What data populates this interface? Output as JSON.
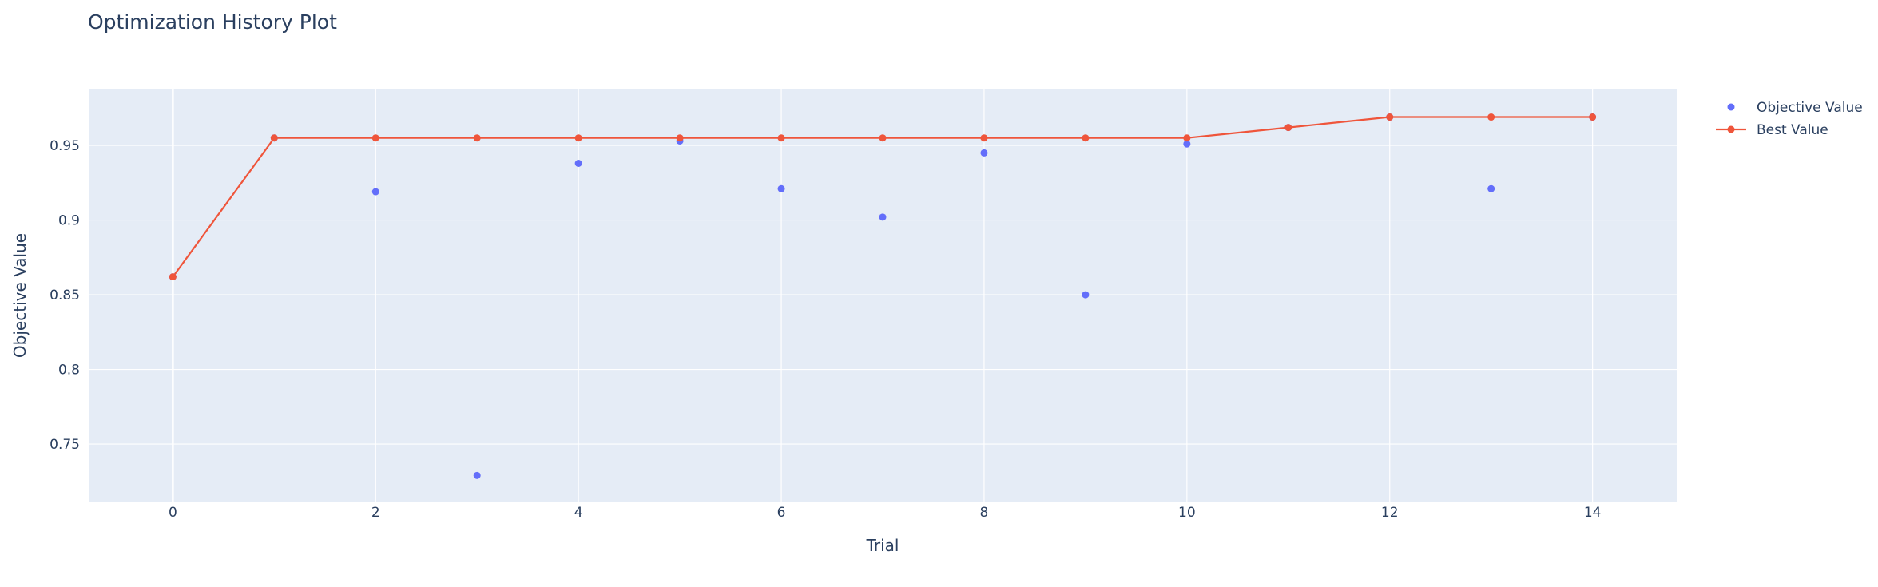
{
  "chart_data": {
    "type": "scatter",
    "title": "Optimization History Plot",
    "xlabel": "Trial",
    "ylabel": "Objective Value",
    "xlim": [
      -0.83,
      14.83
    ],
    "ylim": [
      0.711,
      0.988
    ],
    "x_ticks": [
      0,
      2,
      4,
      6,
      8,
      10,
      12,
      14
    ],
    "y_ticks": [
      0.75,
      0.8,
      0.85,
      0.9,
      0.95
    ],
    "y_tick_labels": [
      "0.75",
      "0.8",
      "0.85",
      "0.9",
      "0.95"
    ],
    "grid": true,
    "legend_position": "top-right",
    "background_color": "#e5ecf6",
    "series": [
      {
        "name": "Objective Value",
        "mode": "markers",
        "color": "#636efa",
        "points": [
          {
            "x": 0,
            "y": 0.862
          },
          {
            "x": 1,
            "y": 0.955
          },
          {
            "x": 2,
            "y": 0.919
          },
          {
            "x": 3,
            "y": 0.729
          },
          {
            "x": 4,
            "y": 0.938
          },
          {
            "x": 5,
            "y": 0.953
          },
          {
            "x": 6,
            "y": 0.921
          },
          {
            "x": 7,
            "y": 0.902
          },
          {
            "x": 8,
            "y": 0.945
          },
          {
            "x": 9,
            "y": 0.85
          },
          {
            "x": 10,
            "y": 0.951
          },
          {
            "x": 11,
            "y": 0.962
          },
          {
            "x": 12,
            "y": 0.969
          },
          {
            "x": 13,
            "y": 0.921
          },
          {
            "x": 14,
            "y": 0.969
          }
        ]
      },
      {
        "name": "Best Value",
        "mode": "lines+markers",
        "color": "#ef553b",
        "points": [
          {
            "x": 0,
            "y": 0.862
          },
          {
            "x": 1,
            "y": 0.955
          },
          {
            "x": 2,
            "y": 0.955
          },
          {
            "x": 3,
            "y": 0.955
          },
          {
            "x": 4,
            "y": 0.955
          },
          {
            "x": 5,
            "y": 0.955
          },
          {
            "x": 6,
            "y": 0.955
          },
          {
            "x": 7,
            "y": 0.955
          },
          {
            "x": 8,
            "y": 0.955
          },
          {
            "x": 9,
            "y": 0.955
          },
          {
            "x": 10,
            "y": 0.955
          },
          {
            "x": 11,
            "y": 0.962
          },
          {
            "x": 12,
            "y": 0.969
          },
          {
            "x": 13,
            "y": 0.969
          },
          {
            "x": 14,
            "y": 0.969
          }
        ]
      }
    ]
  }
}
